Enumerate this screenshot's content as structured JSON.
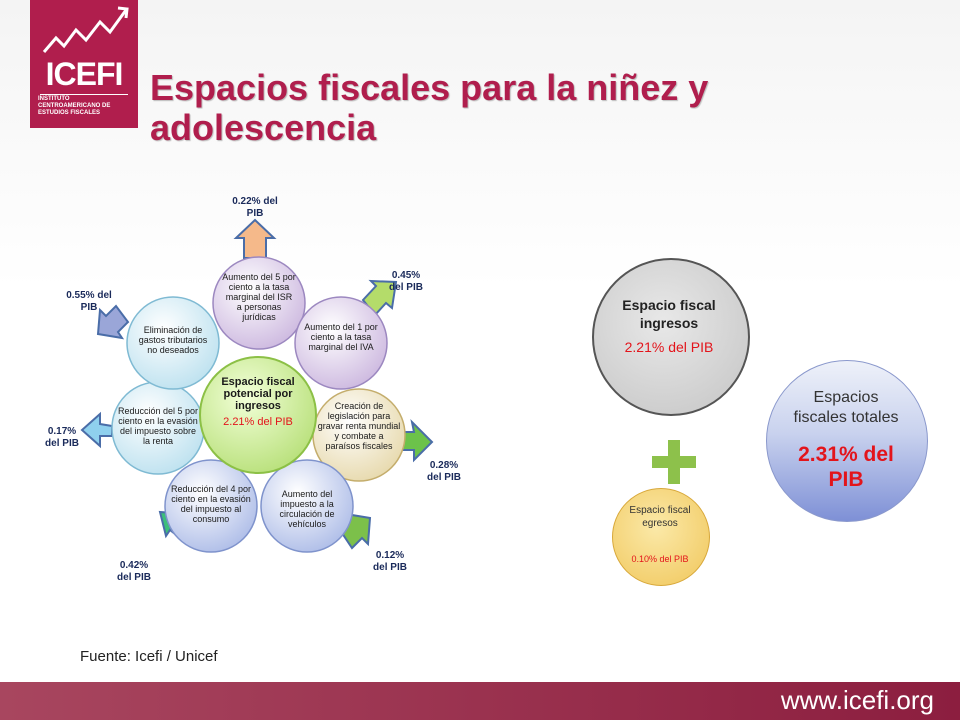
{
  "logo": {
    "name": "ICEFI",
    "subtitle": "INSTITUTO CENTROAMERICANO DE ESTUDIOS FISCALES"
  },
  "title": "Espacios fiscales para la niñez y adolescencia",
  "diagram": {
    "center": {
      "label": "Espacio fiscal potencial por ingresos",
      "value": "2.21% del PIB"
    },
    "nodes": [
      {
        "text": "Aumento del 5 por ciento a la tasa marginal del ISR a personas jurídicas",
        "pct": "0.22% del PIB"
      },
      {
        "text": "Aumento del 1 por ciento a la tasa marginal del IVA",
        "pct": "0.45% del PIB"
      },
      {
        "text": "Creación de legislación para gravar renta mundial y combate a paraísos fiscales",
        "pct": "0.28% del PIB"
      },
      {
        "text": "Aumento del impuesto a la circulación de vehículos",
        "pct": "0.12% del PIB"
      },
      {
        "text": "Reducción del 4 por ciento en la evasión del impuesto al consumo",
        "pct": "0.42% del PIB"
      },
      {
        "text": "Reducción del 5 por ciento en la evasión del impuesto sobre la renta",
        "pct": "0.17% del PIB"
      },
      {
        "text": "Eliminación de gastos tributarios no deseados",
        "pct": "0.55% del PIB"
      }
    ]
  },
  "summary": {
    "ingresos": {
      "label": "Espacio fiscal ingresos",
      "value": "2.21% del PIB"
    },
    "egresos": {
      "label": "Espacio fiscal egresos",
      "value": "0.10% del PIB"
    },
    "plus": "+",
    "totales": {
      "label": "Espacios fiscales totales",
      "value": "2.31% del PIB"
    }
  },
  "source": "Fuente: Icefi / Unicef",
  "footer_url": "www.icefi.org",
  "colors": {
    "brand": "#b01e4d",
    "value_red": "#e3141b",
    "plus_green": "#8dc14b"
  }
}
